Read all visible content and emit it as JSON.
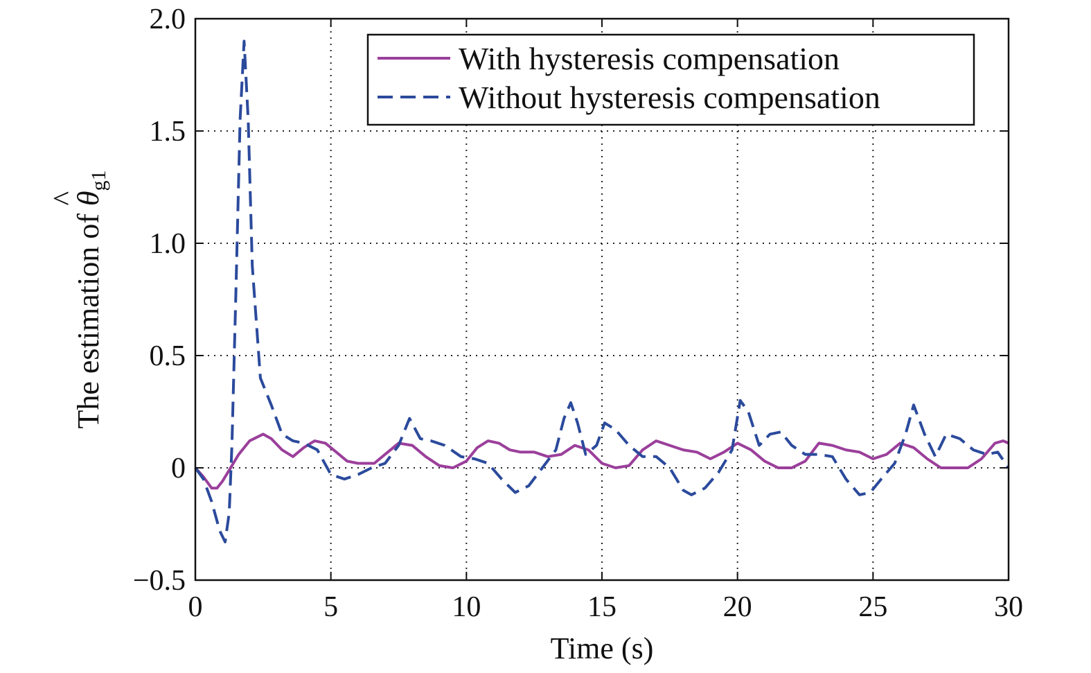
{
  "chart_data": {
    "type": "line",
    "title": "",
    "xlabel": "Time (s)",
    "ylabel": {
      "prefix": "The estimation of ",
      "symbol": "θ",
      "hat": "^",
      "subscript": "g1"
    },
    "xlim": [
      0,
      30
    ],
    "ylim": [
      -0.5,
      2.0
    ],
    "xticks": [
      0,
      5,
      10,
      15,
      20,
      25,
      30
    ],
    "xtick_labels": [
      "0",
      "5",
      "10",
      "15",
      "20",
      "25",
      "30"
    ],
    "yticks": [
      -0.5,
      0,
      0.5,
      1.0,
      1.5,
      2.0
    ],
    "ytick_labels": [
      "−0.5",
      "0",
      "0.5",
      "1.0",
      "1.5",
      "2.0"
    ],
    "grid": true,
    "legend_position": "top-right",
    "series": [
      {
        "name": "With hysteresis compensation",
        "color": "#9b3f9b",
        "style": "solid",
        "x": [
          0,
          0.3,
          0.6,
          0.8,
          1.0,
          1.3,
          1.6,
          2.0,
          2.5,
          2.8,
          3.2,
          3.6,
          4.0,
          4.4,
          4.8,
          5.2,
          5.6,
          6.0,
          6.6,
          7.0,
          7.5,
          8.0,
          8.5,
          9.0,
          9.5,
          10.0,
          10.4,
          10.8,
          11.2,
          11.6,
          12.0,
          12.5,
          13.0,
          13.5,
          14.0,
          14.5,
          15.0,
          15.5,
          16.0,
          16.5,
          17.0,
          17.5,
          18.0,
          18.5,
          19.0,
          19.5,
          20.0,
          20.5,
          21.0,
          21.5,
          22.0,
          22.5,
          23.0,
          23.5,
          24.0,
          24.5,
          25.0,
          25.5,
          26.0,
          26.5,
          27.0,
          27.5,
          28.0,
          28.5,
          29.0,
          29.5,
          29.8,
          30.0
        ],
        "y": [
          0.0,
          -0.04,
          -0.09,
          -0.09,
          -0.06,
          0.0,
          0.06,
          0.12,
          0.15,
          0.13,
          0.08,
          0.05,
          0.09,
          0.12,
          0.11,
          0.07,
          0.03,
          0.02,
          0.02,
          0.06,
          0.11,
          0.1,
          0.05,
          0.01,
          0.0,
          0.03,
          0.09,
          0.12,
          0.11,
          0.08,
          0.07,
          0.07,
          0.05,
          0.06,
          0.1,
          0.08,
          0.02,
          0.0,
          0.01,
          0.08,
          0.12,
          0.1,
          0.08,
          0.07,
          0.04,
          0.07,
          0.11,
          0.08,
          0.03,
          0.0,
          0.0,
          0.03,
          0.11,
          0.1,
          0.08,
          0.07,
          0.04,
          0.06,
          0.11,
          0.09,
          0.04,
          0.0,
          0.0,
          0.0,
          0.04,
          0.11,
          0.12,
          0.11
        ]
      },
      {
        "name": "Without hysteresis compensation",
        "color": "#2b4a9c",
        "style": "dashed",
        "x": [
          0,
          0.3,
          0.6,
          0.9,
          1.1,
          1.25,
          1.35,
          1.5,
          1.65,
          1.8,
          1.95,
          2.1,
          2.4,
          2.8,
          3.2,
          3.6,
          4.0,
          4.5,
          5.0,
          5.5,
          6.0,
          6.5,
          7.0,
          7.5,
          7.9,
          8.3,
          8.7,
          9.2,
          9.8,
          10.3,
          10.8,
          11.3,
          11.8,
          12.3,
          12.8,
          13.3,
          13.6,
          13.85,
          14.1,
          14.4,
          14.8,
          15.1,
          15.5,
          16.0,
          16.5,
          17.0,
          17.5,
          18.0,
          18.3,
          18.8,
          19.3,
          19.8,
          20.1,
          20.4,
          20.8,
          21.2,
          21.6,
          22.0,
          22.5,
          23.0,
          23.5,
          24.0,
          24.5,
          24.9,
          25.3,
          25.8,
          26.2,
          26.5,
          26.9,
          27.3,
          27.7,
          28.2,
          28.7,
          29.2,
          29.6,
          30.0
        ],
        "y": [
          0.0,
          -0.05,
          -0.15,
          -0.28,
          -0.33,
          -0.2,
          0.1,
          0.8,
          1.55,
          1.9,
          1.55,
          0.9,
          0.4,
          0.28,
          0.15,
          0.12,
          0.11,
          0.08,
          -0.03,
          -0.05,
          -0.03,
          0.0,
          0.02,
          0.1,
          0.22,
          0.13,
          0.12,
          0.1,
          0.05,
          0.04,
          0.02,
          -0.05,
          -0.11,
          -0.08,
          0.0,
          0.08,
          0.22,
          0.29,
          0.2,
          0.06,
          0.1,
          0.2,
          0.17,
          0.1,
          0.05,
          0.05,
          0.0,
          -0.1,
          -0.12,
          -0.09,
          -0.02,
          0.08,
          0.3,
          0.25,
          0.1,
          0.15,
          0.16,
          0.1,
          0.06,
          0.06,
          0.05,
          -0.05,
          -0.12,
          -0.11,
          -0.05,
          0.02,
          0.15,
          0.28,
          0.15,
          0.05,
          0.15,
          0.13,
          0.08,
          0.06,
          0.07,
          0.0
        ]
      }
    ]
  }
}
